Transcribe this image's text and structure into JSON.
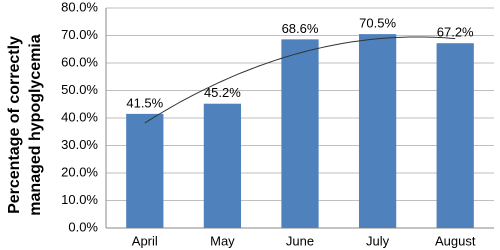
{
  "chart_data": {
    "type": "bar",
    "y_label": [
      "Percentage of correctly",
      "managed hypoglycemia"
    ],
    "categories": [
      "April",
      "May",
      "June",
      "July",
      "August"
    ],
    "values": [
      41.5,
      45.2,
      68.6,
      70.5,
      67.2
    ],
    "value_labels": [
      "41.5%",
      "45.2%",
      "68.6%",
      "70.5%",
      "67.2%"
    ],
    "color": "#4f81bd",
    "ylim": [
      0,
      80
    ],
    "yticks": [
      {
        "value": 0,
        "label": "0.0%"
      },
      {
        "value": 10,
        "label": "10.0%"
      },
      {
        "value": 20,
        "label": "20.0%"
      },
      {
        "value": 30,
        "label": "30.0%"
      },
      {
        "value": 40,
        "label": "40.0%"
      },
      {
        "value": 50,
        "label": "50.0%"
      },
      {
        "value": 60,
        "label": "60.0%"
      },
      {
        "value": 70,
        "label": "70.0%"
      },
      {
        "value": 80,
        "label": "80.0%"
      }
    ],
    "grid": true,
    "trendline": "polynomial"
  }
}
